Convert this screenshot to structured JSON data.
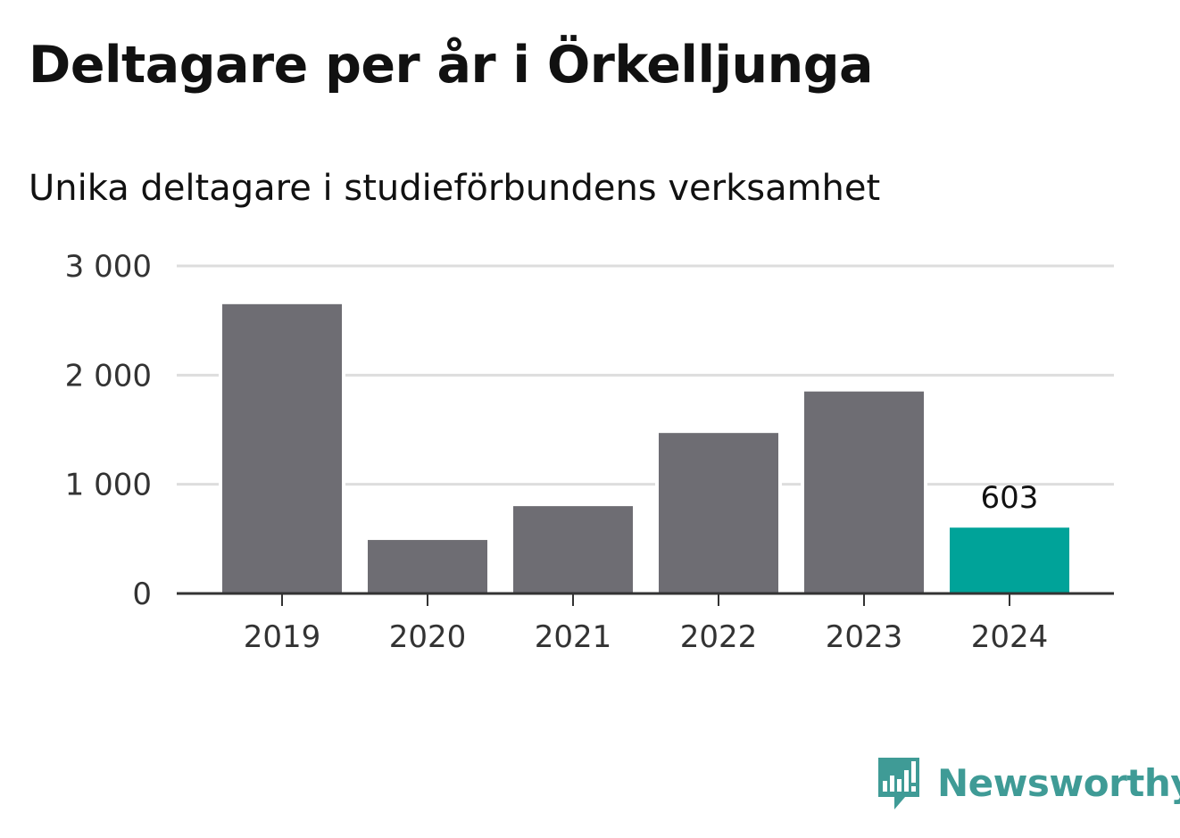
{
  "title": "Deltagare per år i Örkelljunga",
  "subtitle": "Unika deltagare i studieförbundens verksamhet",
  "brand": {
    "name": "Newsworthy",
    "icon": "newsworthy-logo-icon",
    "color": "#3f9b96"
  },
  "chart_data": {
    "type": "bar",
    "categories": [
      "2019",
      "2020",
      "2021",
      "2022",
      "2023",
      "2024"
    ],
    "values": [
      2650,
      490,
      800,
      1470,
      1850,
      603
    ],
    "ylim": [
      0,
      3000
    ],
    "yticks": [
      0,
      1000,
      2000,
      3000
    ],
    "ytick_labels": [
      "0",
      "1 000",
      "2 000",
      "3 000"
    ],
    "grid": true,
    "bar_color": "#6e6d73",
    "highlight_color": "#00a399",
    "highlight_index": 5,
    "annotations": [
      {
        "category": "2024",
        "text": "603"
      }
    ]
  }
}
